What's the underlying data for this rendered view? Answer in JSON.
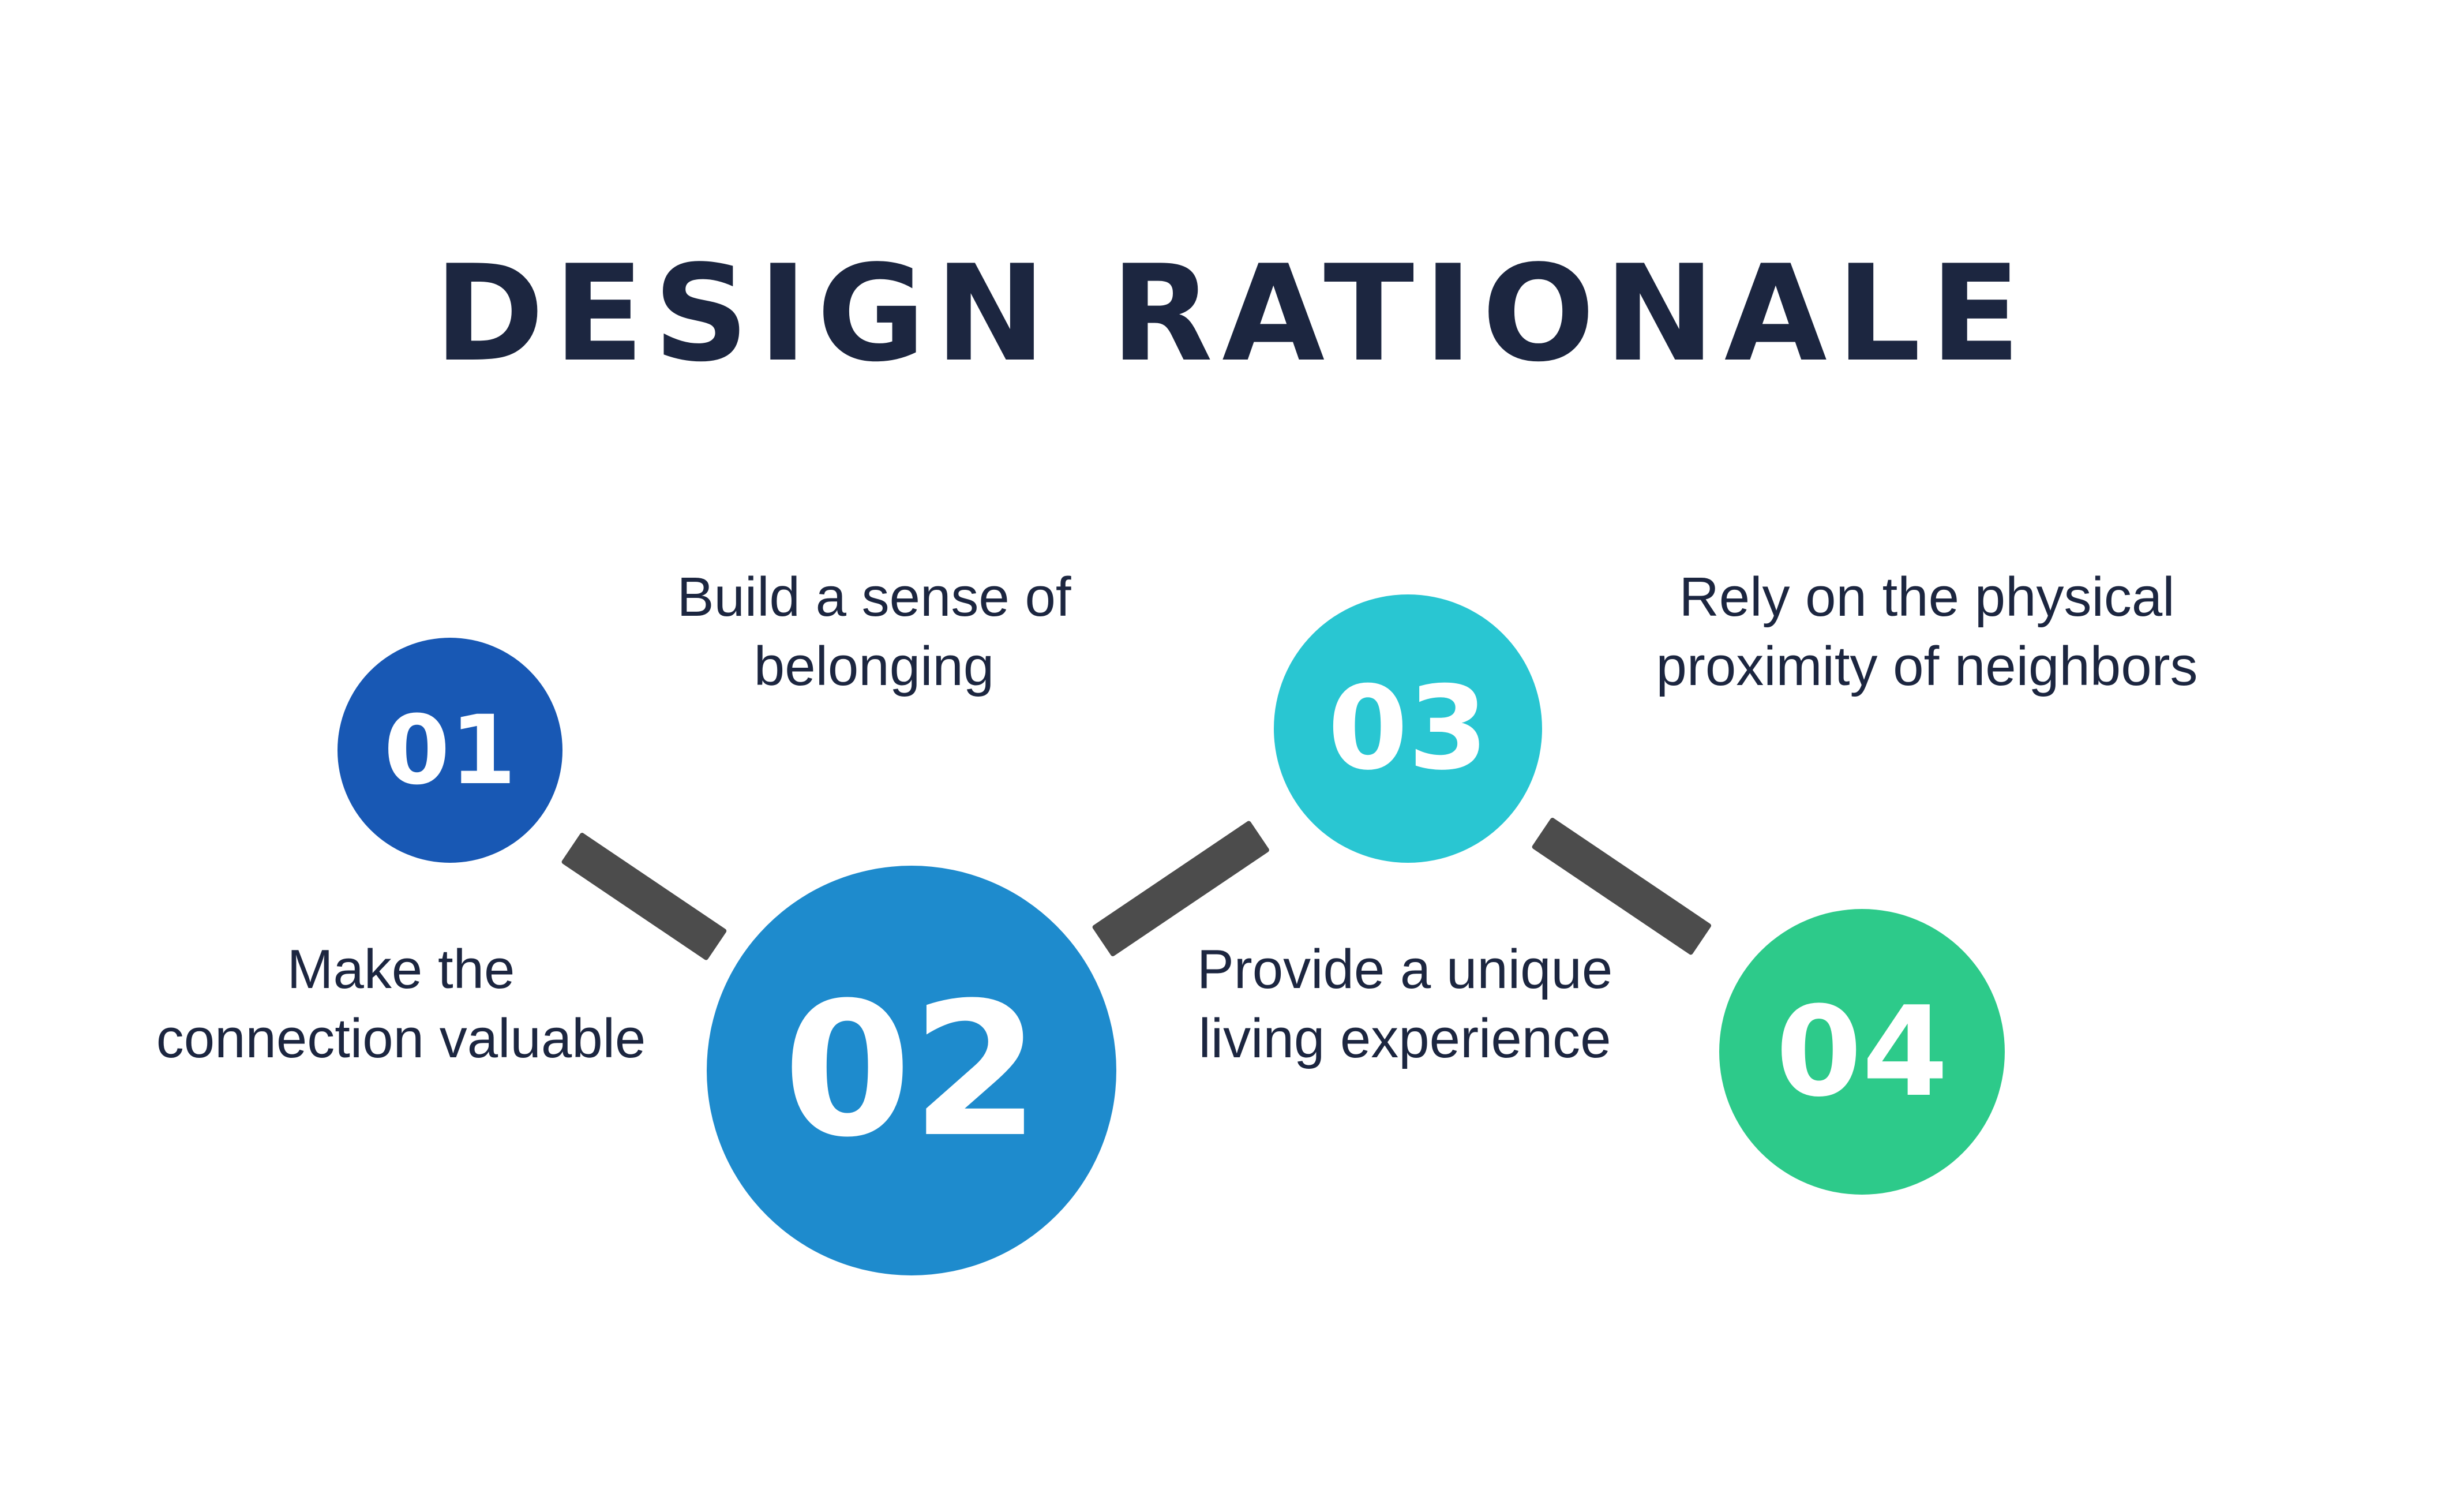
{
  "title": "DESIGN RATIONALE",
  "steps": [
    {
      "number": "01",
      "text_lines": [
        "Make the",
        "connection valuable"
      ],
      "color": "#1858b4"
    },
    {
      "number": "02",
      "text_lines": [
        "Build a sense of",
        "belonging"
      ],
      "color": "#1e8bcd"
    },
    {
      "number": "03",
      "text_lines": [
        "Provide a unique",
        "living experience"
      ],
      "color": "#29c6d2"
    },
    {
      "number": "04",
      "text_lines": [
        "Rely on the physical",
        "proximity of neighbors"
      ],
      "color": "#2dca8a"
    }
  ],
  "colors": {
    "title": "#1c2640",
    "connector": "#4c4c4c",
    "background": "#ffffff"
  }
}
